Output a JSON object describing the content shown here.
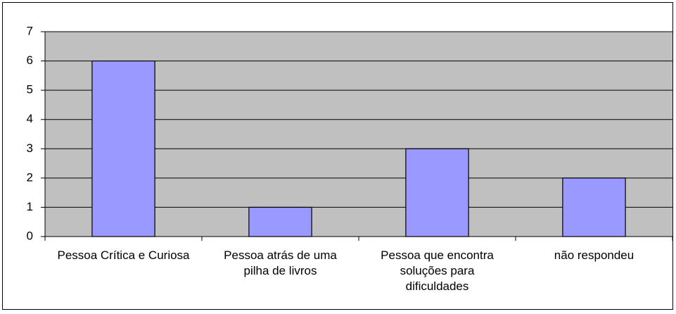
{
  "chart_data": {
    "type": "bar",
    "categories": [
      "Pessoa Crítica e Curiosa",
      "Pessoa atrás de uma pilha de livros",
      "Pessoa que encontra soluções para dificuldades",
      "não respondeu"
    ],
    "values": [
      6,
      1,
      3,
      2
    ],
    "color": "#9999ff",
    "ylim": [
      0,
      7
    ],
    "yticks": [
      0,
      1,
      2,
      3,
      4,
      5,
      6,
      7
    ],
    "grid": true
  }
}
